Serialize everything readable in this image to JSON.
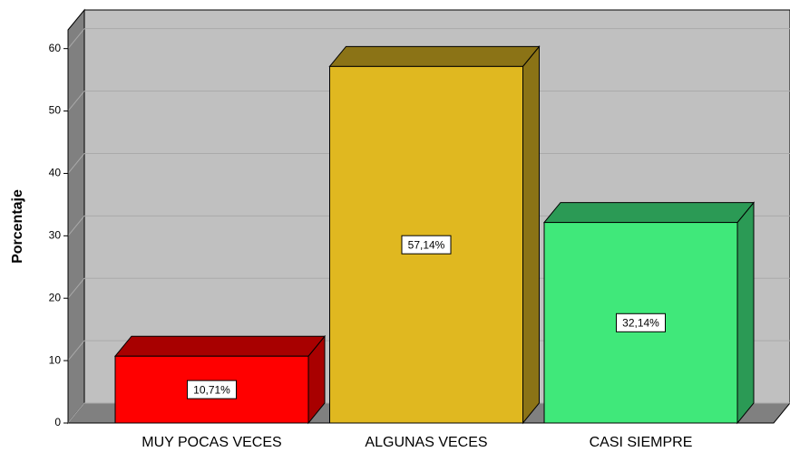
{
  "chart_data": {
    "type": "bar3d",
    "y_label": "Porcentaje",
    "categories": [
      "MUY POCAS VECES",
      "ALGUNAS VECES",
      "CASI SIEMPRE"
    ],
    "values": [
      10.71,
      57.14,
      32.14
    ],
    "value_labels": [
      "10,71%",
      "57,14%",
      "32,14%"
    ],
    "colors": [
      "#ff0000",
      "#e0b820",
      "#40e87a"
    ],
    "shade_colors": [
      "#a80000",
      "#8b7316",
      "#2b9a55"
    ],
    "ylim": [
      0,
      63
    ],
    "yticks": [
      0,
      10,
      20,
      30,
      40,
      50,
      60
    ],
    "grid": true
  }
}
